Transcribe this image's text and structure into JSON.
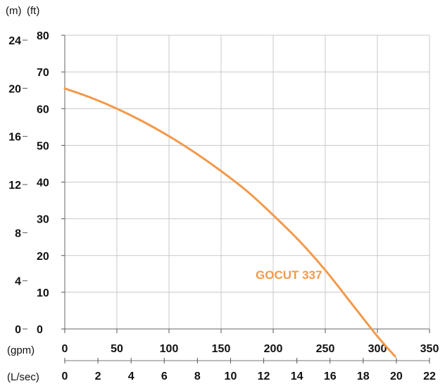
{
  "chart_data": {
    "type": "line",
    "title": "",
    "axes": {
      "left_m": {
        "unit_label": "(m)",
        "ticks": [
          0,
          4,
          8,
          12,
          16,
          20,
          24
        ]
      },
      "left_ft": {
        "unit_label": "(ft)",
        "ticks": [
          0,
          10,
          20,
          30,
          40,
          50,
          60,
          70,
          80
        ],
        "range": [
          0,
          80
        ]
      },
      "bottom_gpm": {
        "unit_label": "(gpm)",
        "ticks": [
          0,
          50,
          100,
          150,
          200,
          250,
          300,
          350
        ],
        "range": [
          0,
          350
        ]
      },
      "bottom_lsec": {
        "unit_label": "(L/sec)",
        "ticks": [
          0,
          2,
          4,
          6,
          8,
          10,
          12,
          14,
          16,
          18,
          20,
          22
        ]
      }
    },
    "grid": true,
    "series": [
      {
        "name": "GOCUT 337",
        "color": "#f2994a",
        "x_gpm": [
          0,
          25,
          50,
          75,
          100,
          125,
          150,
          175,
          200,
          225,
          250,
          275,
          300,
          317
        ],
        "y_ft": [
          65.5,
          63,
          60,
          56.5,
          52.5,
          48,
          43,
          37.5,
          31,
          24,
          16,
          7,
          -2,
          -7.5
        ]
      }
    ]
  }
}
